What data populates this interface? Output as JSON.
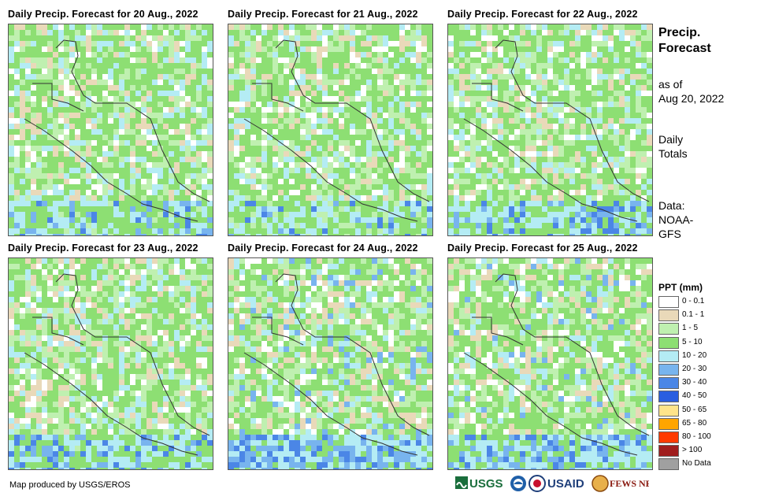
{
  "panels": [
    {
      "title": "Daily  Precip.  Forecast for 20 Aug., 2022"
    },
    {
      "title": "Daily  Precip.  Forecast for 21 Aug., 2022"
    },
    {
      "title": "Daily  Precip.  Forecast for 22 Aug., 2022"
    },
    {
      "title": "Daily  Precip.  Forecast for 23 Aug., 2022"
    },
    {
      "title": "Daily  Precip.  Forecast for 24 Aug., 2022"
    },
    {
      "title": "Daily  Precip.  Forecast for 25 Aug., 2022"
    }
  ],
  "side": {
    "title_line1": "Precip.",
    "title_line2": "Forecast",
    "asof_line1": "as of",
    "asof_line2": "Aug 20, 2022",
    "daily_line1": "Daily",
    "daily_line2": "Totals",
    "data_line1": "Data:",
    "data_line2": "NOAA-",
    "data_line3": "GFS"
  },
  "legend": {
    "title": "PPT (mm)",
    "items": [
      {
        "label": "0 - 0.1",
        "color": "#ffffff"
      },
      {
        "label": "0.1 - 1",
        "color": "#e9d9b9"
      },
      {
        "label": "1 - 5",
        "color": "#bff0b0"
      },
      {
        "label": "5 - 10",
        "color": "#8ddf73"
      },
      {
        "label": "10 - 20",
        "color": "#b4ecf4"
      },
      {
        "label": "20 - 30",
        "color": "#78b4ee"
      },
      {
        "label": "30 - 40",
        "color": "#4b86e6"
      },
      {
        "label": "40 - 50",
        "color": "#2a5ee0"
      },
      {
        "label": "50 - 65",
        "color": "#ffe48a"
      },
      {
        "label": "65 - 80",
        "color": "#ffa500"
      },
      {
        "label": "80 - 100",
        "color": "#ff3a00"
      },
      {
        "label": "> 100",
        "color": "#a01e1e"
      },
      {
        "label": "No Data",
        "color": "#a0a0a0"
      }
    ]
  },
  "credit": "Map produced by USGS/EROS",
  "logos": {
    "usgs": "USGS",
    "usaid": "USAID",
    "fewsnet": "FEWS NET"
  }
}
